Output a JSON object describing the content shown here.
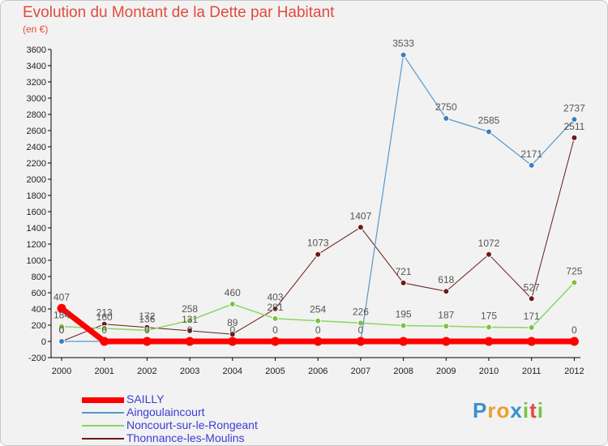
{
  "title": "Evolution du Montant de la Dette par Habitant",
  "unit": "(en €)",
  "logo": {
    "letters": [
      "P",
      "r",
      "o",
      "x",
      "i",
      "t",
      "i"
    ],
    "colors": [
      "#3a8fd0",
      "#e8a030",
      "#e8a030",
      "#3a8fd0",
      "#7cc242",
      "#e04c3c",
      "#7cc242"
    ]
  },
  "chart_data": {
    "type": "line",
    "title": "Evolution du Montant de la Dette par Habitant",
    "ylabel": "(en €)",
    "xlabel": "",
    "ylim": [
      -200,
      3600
    ],
    "yticks": [
      -200,
      0,
      200,
      400,
      600,
      800,
      1000,
      1200,
      1400,
      1600,
      1800,
      2000,
      2200,
      2400,
      2600,
      2800,
      3000,
      3200,
      3400,
      3600
    ],
    "categories": [
      "2000",
      "2001",
      "2002",
      "2003",
      "2004",
      "2005",
      "2006",
      "2007",
      "2008",
      "2009",
      "2010",
      "2011",
      "2012"
    ],
    "grid": false,
    "legend_position": "bottom-left",
    "series": [
      {
        "name": "SAILLY",
        "color": "#ff0000",
        "values": [
          407,
          0,
          0,
          0,
          0,
          0,
          0,
          0,
          0,
          0,
          0,
          0,
          0
        ],
        "labels": [
          "407",
          "",
          "",
          "",
          "",
          "",
          "",
          "",
          "",
          "",
          "",
          "",
          "0"
        ]
      },
      {
        "name": "Aingoulaincourt",
        "color": "#5599cc",
        "values": [
          0,
          0,
          0,
          0,
          0,
          0,
          0,
          0,
          3533,
          2750,
          2585,
          2171,
          2737
        ],
        "labels": [
          "0",
          "0",
          "0",
          "0",
          "0",
          "0",
          "0",
          "0",
          "3533",
          "2750",
          "2585",
          "2171",
          "2737"
        ]
      },
      {
        "name": "Noncourt-sur-le-Rongeant",
        "color": "#88d860",
        "values": [
          184,
          160,
          136,
          258,
          460,
          281,
          254,
          226,
          195,
          187,
          175,
          171,
          725
        ],
        "labels": [
          "184",
          "160",
          "136",
          "258",
          "460",
          "281",
          "254",
          "226",
          "195",
          "187",
          "175",
          "171",
          "725"
        ]
      },
      {
        "name": "Thonnance-les-Moulins",
        "color": "#6b1a1a",
        "values": [
          0,
          213,
          172,
          131,
          89,
          403,
          1073,
          1407,
          721,
          618,
          1072,
          527,
          2511
        ],
        "labels": [
          "0",
          "213",
          "172",
          "131",
          "89",
          "403",
          "1073",
          "1407",
          "721",
          "618",
          "1072",
          "527",
          "2511"
        ]
      }
    ]
  }
}
